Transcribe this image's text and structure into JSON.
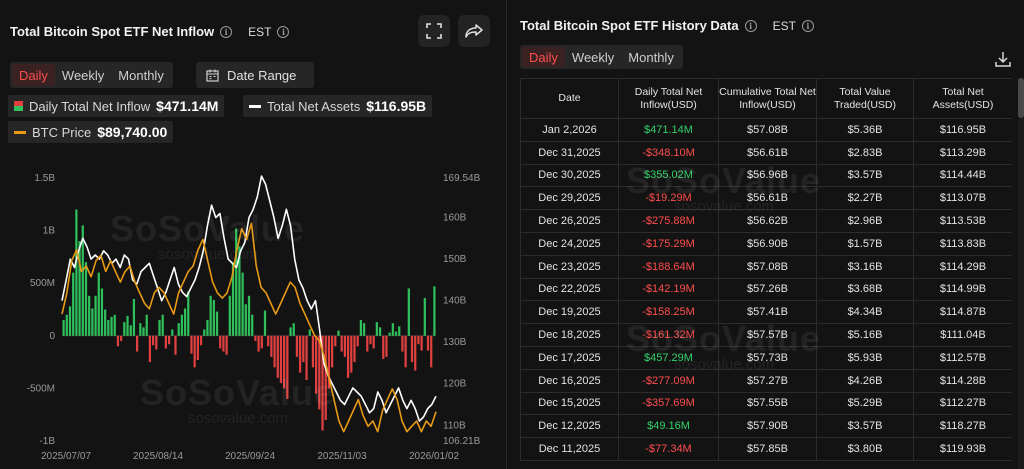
{
  "left": {
    "title": "Total Bitcoin Spot ETF Net Inflow",
    "timezone": "EST",
    "periods": [
      "Daily",
      "Weekly",
      "Monthly"
    ],
    "active_period": "Daily",
    "date_range_label": "Date Range",
    "legend": {
      "inflow_label": "Daily Total Net Inflow",
      "inflow_value": "$471.14M",
      "assets_label": "Total Net Assets",
      "assets_value": "$116.95B",
      "btc_label": "BTC Price",
      "btc_value": "$89,740.00"
    }
  },
  "right": {
    "title": "Total Bitcoin Spot ETF History Data",
    "timezone": "EST",
    "periods": [
      "Daily",
      "Weekly",
      "Monthly"
    ],
    "active_period": "Daily",
    "columns": [
      "Date",
      "Daily Total Net Inflow(USD)",
      "Cumulative Total Net Inflow(USD)",
      "Total Value Traded(USD)",
      "Total Net Assets(USD)"
    ],
    "rows": [
      [
        "Jan 2,2026",
        "$471.14M",
        "$57.08B",
        "$5.36B",
        "$116.95B"
      ],
      [
        "Dec 31,2025",
        "-$348.10M",
        "$56.61B",
        "$2.83B",
        "$113.29B"
      ],
      [
        "Dec 30,2025",
        "$355.02M",
        "$56.96B",
        "$3.57B",
        "$114.44B"
      ],
      [
        "Dec 29,2025",
        "-$19.29M",
        "$56.61B",
        "$2.27B",
        "$113.07B"
      ],
      [
        "Dec 26,2025",
        "-$275.88M",
        "$56.62B",
        "$2.96B",
        "$113.53B"
      ],
      [
        "Dec 24,2025",
        "-$175.29M",
        "$56.90B",
        "$1.57B",
        "$113.83B"
      ],
      [
        "Dec 23,2025",
        "-$188.64M",
        "$57.08B",
        "$3.16B",
        "$114.29B"
      ],
      [
        "Dec 22,2025",
        "-$142.19M",
        "$57.26B",
        "$3.68B",
        "$114.99B"
      ],
      [
        "Dec 19,2025",
        "-$158.25M",
        "$57.41B",
        "$4.34B",
        "$114.87B"
      ],
      [
        "Dec 18,2025",
        "-$161.32M",
        "$57.57B",
        "$5.16B",
        "$111.04B"
      ],
      [
        "Dec 17,2025",
        "$457.29M",
        "$57.73B",
        "$5.93B",
        "$112.57B"
      ],
      [
        "Dec 16,2025",
        "-$277.09M",
        "$57.27B",
        "$4.26B",
        "$114.28B"
      ],
      [
        "Dec 15,2025",
        "-$357.69M",
        "$57.55B",
        "$5.29B",
        "$112.27B"
      ],
      [
        "Dec 12,2025",
        "$49.16M",
        "$57.90B",
        "$3.57B",
        "$118.27B"
      ],
      [
        "Dec 11,2025",
        "-$77.34M",
        "$57.85B",
        "$3.80B",
        "$119.93B"
      ]
    ]
  },
  "watermark": {
    "brand": "SoSoValue",
    "site": "sosovalue.com"
  },
  "colors": {
    "positive": "#2fbf5b",
    "negative": "#e0403f",
    "assets_line": "#ffffff",
    "btc_line": "#e89a14",
    "accent": "#ff4d4d"
  },
  "icons": [
    "fullscreen-icon",
    "share-icon",
    "calendar-icon",
    "download-icon",
    "info-icon"
  ],
  "chart_data": {
    "type": "bar",
    "title": "Total Bitcoin Spot ETF Net Inflow",
    "x_ticks": [
      "2025/07/07",
      "2025/08/14",
      "2025/09/24",
      "2025/11/03",
      "2026/01/02"
    ],
    "y_left_ticks": [
      "1.5B",
      "1B",
      "500M",
      "0",
      "-500M",
      "-1B"
    ],
    "y_left_range_musd": [
      -1000,
      1500
    ],
    "y_right_ticks": [
      "169.54B",
      "160B",
      "150B",
      "140B",
      "130B",
      "120B",
      "110B",
      "106.21B"
    ],
    "y_right_range_busd": [
      106.21,
      169.54
    ],
    "series": [
      {
        "name": "Daily Total Net Inflow",
        "kind": "bar",
        "unit": "M USD",
        "values": [
          150,
          200,
          280,
          600,
          1200,
          900,
          1050,
          700,
          380,
          260,
          380,
          600,
          450,
          250,
          150,
          180,
          200,
          -100,
          -50,
          130,
          190,
          100,
          350,
          -150,
          120,
          80,
          200,
          -250,
          -90,
          -130,
          150,
          200,
          -120,
          -80,
          60,
          -180,
          120,
          200,
          260,
          420,
          -170,
          -300,
          -230,
          -90,
          60,
          150,
          380,
          340,
          230,
          -120,
          -150,
          -180,
          380,
          700,
          1020,
          850,
          600,
          300,
          380,
          200,
          -50,
          -150,
          -120,
          240,
          -100,
          -200,
          -300,
          -400,
          -450,
          -500,
          -600,
          80,
          120,
          -200,
          -350,
          -250,
          -420,
          60,
          -300,
          -550,
          -700,
          -900,
          -800,
          -500,
          -300,
          -100,
          50,
          -150,
          -200,
          -400,
          -350,
          -250,
          -100,
          150,
          120,
          -150,
          -80,
          -120,
          130,
          80,
          -220,
          -200,
          30,
          120,
          40,
          90,
          -150,
          -300,
          450,
          -250,
          -330,
          -80,
          -140,
          360,
          -140,
          -300,
          470
        ]
      },
      {
        "name": "Total Net Assets",
        "kind": "line",
        "unit": "B USD",
        "values": [
          140,
          145,
          150,
          148,
          152,
          155,
          153,
          150,
          151,
          150,
          152,
          151,
          149,
          150,
          148,
          151,
          150,
          145,
          144,
          147,
          148,
          149,
          146,
          143,
          140,
          142,
          145,
          148,
          144,
          142,
          141,
          143,
          145,
          148,
          152,
          158,
          163,
          160,
          161,
          155,
          150,
          149,
          148,
          152,
          154,
          160,
          162,
          165,
          170,
          168,
          164,
          160,
          155,
          158,
          162,
          158,
          150,
          145,
          143,
          140,
          138,
          140,
          133,
          125,
          122,
          120,
          118,
          116,
          115,
          117,
          119,
          118,
          117,
          115,
          113,
          114,
          118,
          116,
          113,
          115,
          117,
          119,
          116,
          114,
          116,
          114,
          111,
          112,
          114,
          115,
          117
        ]
      },
      {
        "name": "BTC Price",
        "kind": "line",
        "unit": "USD",
        "values": [
          108000,
          112000,
          118000,
          120000,
          116000,
          117000,
          115000,
          118000,
          119000,
          116000,
          118000,
          116000,
          114000,
          116000,
          117000,
          114000,
          112000,
          110000,
          109000,
          112000,
          113000,
          112000,
          110000,
          108000,
          112000,
          114000,
          116000,
          117000,
          120000,
          122000,
          118000,
          114000,
          112000,
          111000,
          112000,
          115000,
          120000,
          124000,
          122000,
          125000,
          117000,
          113000,
          112000,
          110000,
          108000,
          110000,
          112000,
          114000,
          113000,
          110000,
          108000,
          106000,
          104000,
          103000,
          100000,
          96000,
          92000,
          88000,
          86000,
          88000,
          90000,
          92000,
          89000,
          87000,
          88000,
          86000,
          90000,
          92000,
          94000,
          92000,
          88000,
          86000,
          87000,
          88000,
          86000,
          88000,
          87000,
          89740
        ]
      }
    ]
  }
}
